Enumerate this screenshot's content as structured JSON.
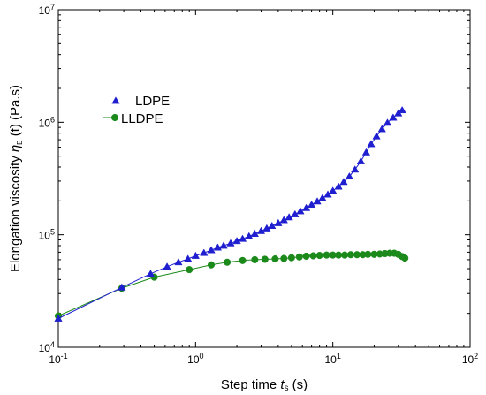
{
  "chart_data": {
    "type": "line",
    "x_scale": "log",
    "y_scale": "log",
    "xlim": [
      0.1,
      100
    ],
    "ylim": [
      10000,
      10000000
    ],
    "xlabel": {
      "main": "Step time ",
      "symbol": "t",
      "sub": "s",
      "unit": " (s)"
    },
    "ylabel": {
      "main": "Elongation viscosity ",
      "symbol": "η",
      "sub": "E",
      "unit": " (t)  (Pa.s)"
    },
    "x_ticks": [
      {
        "value": 0.1,
        "base": "10",
        "exp": "-1"
      },
      {
        "value": 1,
        "base": "10",
        "exp": "0"
      },
      {
        "value": 10,
        "base": "10",
        "exp": "1"
      },
      {
        "value": 100,
        "base": "10",
        "exp": "2"
      }
    ],
    "y_ticks": [
      {
        "value": 10000,
        "base": "10",
        "exp": "4"
      },
      {
        "value": 100000,
        "base": "10",
        "exp": "5"
      },
      {
        "value": 1000000,
        "base": "10",
        "exp": "6"
      },
      {
        "value": 10000000,
        "base": "10",
        "exp": "7"
      }
    ],
    "legend": {
      "position": "upper-left"
    },
    "series": [
      {
        "name": "LDPE",
        "marker": "triangle",
        "color": "#1f1fd0",
        "x": [
          0.1,
          0.29,
          0.47,
          0.62,
          0.75,
          0.88,
          1.0,
          1.15,
          1.3,
          1.45,
          1.6,
          1.8,
          2.0,
          2.2,
          2.45,
          2.7,
          3.0,
          3.3,
          3.6,
          4.0,
          4.4,
          4.8,
          5.3,
          5.8,
          6.4,
          7.0,
          7.7,
          8.4,
          9.2,
          10.0,
          11.0,
          12.0,
          13.2,
          14.5,
          16.0,
          17.5,
          19.0,
          20.8,
          22.8,
          25.0,
          27.5,
          30.0,
          32.0
        ],
        "y": [
          18000,
          34000,
          45000,
          52000,
          57000,
          61000,
          65000,
          69000,
          73000,
          77000,
          80000,
          84000,
          88000,
          92000,
          97000,
          102000,
          108000,
          114000,
          120000,
          127000,
          135000,
          143000,
          152000,
          162000,
          173000,
          185000,
          198000,
          212000,
          228000,
          246000,
          268000,
          295000,
          330000,
          380000,
          450000,
          540000,
          640000,
          750000,
          870000,
          990000,
          1100000,
          1200000,
          1280000
        ]
      },
      {
        "name": "LLDPE",
        "marker": "circle",
        "color": "#1b8a1b",
        "x": [
          0.1,
          0.29,
          0.5,
          0.9,
          1.3,
          1.7,
          2.2,
          2.7,
          3.2,
          3.8,
          4.4,
          5.0,
          5.7,
          6.4,
          7.2,
          8.0,
          9.0,
          10.0,
          11.0,
          12.2,
          13.5,
          15.0,
          16.5,
          18.0,
          20.0,
          22.0,
          24.0,
          26.0,
          28.0,
          30.0,
          32.0,
          33.5
        ],
        "y": [
          19000,
          33500,
          42000,
          49000,
          54000,
          57000,
          59000,
          60000,
          60500,
          61000,
          61500,
          62500,
          63500,
          64500,
          65000,
          65500,
          66000,
          66000,
          66000,
          66000,
          66500,
          66500,
          66500,
          67000,
          67000,
          67500,
          68000,
          68500,
          68500,
          67000,
          64000,
          62000
        ]
      }
    ]
  }
}
